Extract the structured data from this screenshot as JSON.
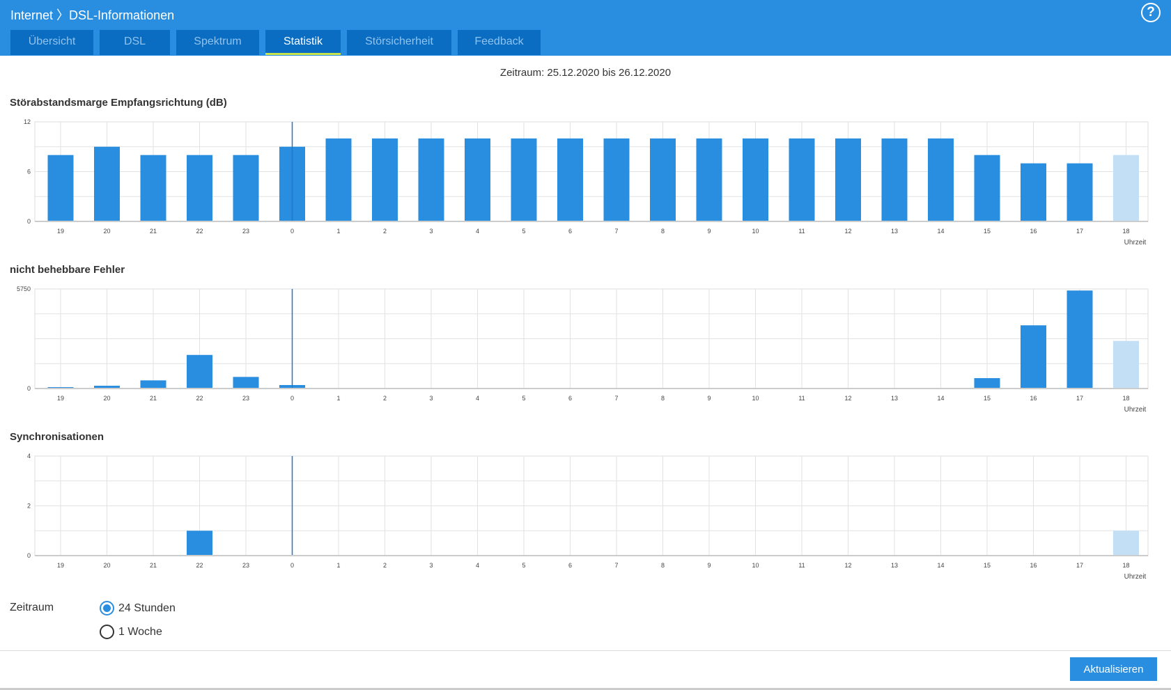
{
  "header": {
    "breadcrumb": "Internet 〉DSL-Informationen",
    "help_icon": "question-circle-icon"
  },
  "tabs": [
    {
      "label": "Übersicht",
      "active": false
    },
    {
      "label": "DSL",
      "active": false
    },
    {
      "label": "Spektrum",
      "active": false
    },
    {
      "label": "Statistik",
      "active": true
    },
    {
      "label": "Störsicherheit",
      "active": false
    },
    {
      "label": "Feedback",
      "active": false
    }
  ],
  "range_text": "Zeitraum: 25.12.2020 bis 26.12.2020",
  "colors": {
    "bar": "#2a8ee0",
    "bar_current": "#c3dff5",
    "header": "#2a8ee0",
    "tab": "#0b6dc2"
  },
  "chart_data": [
    {
      "type": "bar",
      "title": "Störabstandsmarge Empfangsrichtung (dB)",
      "xlabel": "Uhrzeit",
      "categories": [
        "19",
        "20",
        "21",
        "22",
        "23",
        "0",
        "1",
        "2",
        "3",
        "4",
        "5",
        "6",
        "7",
        "8",
        "9",
        "10",
        "11",
        "12",
        "13",
        "14",
        "15",
        "16",
        "17",
        "18"
      ],
      "values": [
        8,
        9,
        8,
        8,
        8,
        9,
        10,
        10,
        10,
        10,
        10,
        10,
        10,
        10,
        10,
        10,
        10,
        10,
        10,
        10,
        8,
        7,
        7,
        8
      ],
      "yticks": [
        "0",
        "6",
        "12"
      ],
      "ylim": [
        0,
        12
      ],
      "grid": true,
      "current_category": "18",
      "marker_category": "0"
    },
    {
      "type": "bar",
      "title": "nicht behebbare Fehler",
      "xlabel": "Uhrzeit",
      "categories": [
        "19",
        "20",
        "21",
        "22",
        "23",
        "0",
        "1",
        "2",
        "3",
        "4",
        "5",
        "6",
        "7",
        "8",
        "9",
        "10",
        "11",
        "12",
        "13",
        "14",
        "15",
        "16",
        "17",
        "18"
      ],
      "values": [
        80,
        160,
        470,
        1940,
        670,
        200,
        0,
        0,
        0,
        0,
        0,
        0,
        0,
        0,
        0,
        0,
        0,
        0,
        0,
        0,
        600,
        3650,
        5660,
        2750
      ],
      "yticks": [
        "0",
        "5750"
      ],
      "ylim": [
        0,
        5750
      ],
      "grid": true,
      "current_category": "18",
      "marker_category": "0"
    },
    {
      "type": "bar",
      "title": "Synchronisationen",
      "xlabel": "Uhrzeit",
      "categories": [
        "19",
        "20",
        "21",
        "22",
        "23",
        "0",
        "1",
        "2",
        "3",
        "4",
        "5",
        "6",
        "7",
        "8",
        "9",
        "10",
        "11",
        "12",
        "13",
        "14",
        "15",
        "16",
        "17",
        "18"
      ],
      "values": [
        0,
        0,
        0,
        1,
        0,
        0,
        0,
        0,
        0,
        0,
        0,
        0,
        0,
        0,
        0,
        0,
        0,
        0,
        0,
        0,
        0,
        0,
        0,
        1
      ],
      "yticks": [
        "0",
        "2",
        "4"
      ],
      "ylim": [
        0,
        4
      ],
      "grid": true,
      "current_category": "18",
      "marker_category": "0"
    }
  ],
  "period": {
    "label": "Zeitraum",
    "options": [
      {
        "label": "24 Stunden",
        "selected": true
      },
      {
        "label": "1 Woche",
        "selected": false
      }
    ]
  },
  "refresh_label": "Aktualisieren"
}
